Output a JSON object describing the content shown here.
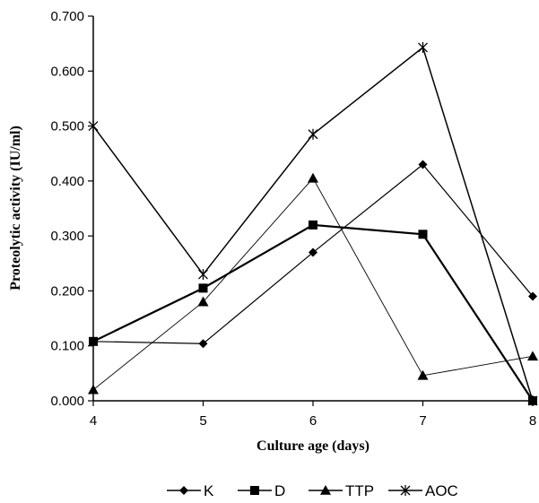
{
  "chart_data": {
    "type": "line",
    "xlabel": "Culture age (days)",
    "ylabel": "Proteolytic  activity (IU/ml)",
    "x": [
      4,
      5,
      6,
      7,
      8
    ],
    "x_tick_labels": [
      "4",
      "5",
      "6",
      "7",
      "8"
    ],
    "xlim": [
      4,
      8
    ],
    "ylim": [
      0,
      0.7
    ],
    "y_ticks": [
      0,
      0.1,
      0.2,
      0.3,
      0.4,
      0.5,
      0.6,
      0.7
    ],
    "y_tick_labels": [
      "0.000",
      "0.100",
      "0.200",
      "0.300",
      "0.400",
      "0.500",
      "0.600",
      "0.700"
    ],
    "grid": false,
    "legend_position": "bottom",
    "series": [
      {
        "name": "K",
        "marker": "diamond",
        "values": [
          0.108,
          0.104,
          0.27,
          0.43,
          0.19
        ]
      },
      {
        "name": "D",
        "marker": "square",
        "values": [
          0.108,
          0.205,
          0.32,
          0.303,
          0.0
        ]
      },
      {
        "name": "TTP",
        "marker": "triangle",
        "values": [
          0.02,
          0.18,
          0.405,
          0.046,
          0.081
        ]
      },
      {
        "name": "AOC",
        "marker": "star",
        "values": [
          0.5,
          0.23,
          0.485,
          0.643,
          0.0
        ]
      }
    ],
    "colors": {
      "line": "#000000",
      "marker": "#000000",
      "axis": "#000000"
    }
  }
}
